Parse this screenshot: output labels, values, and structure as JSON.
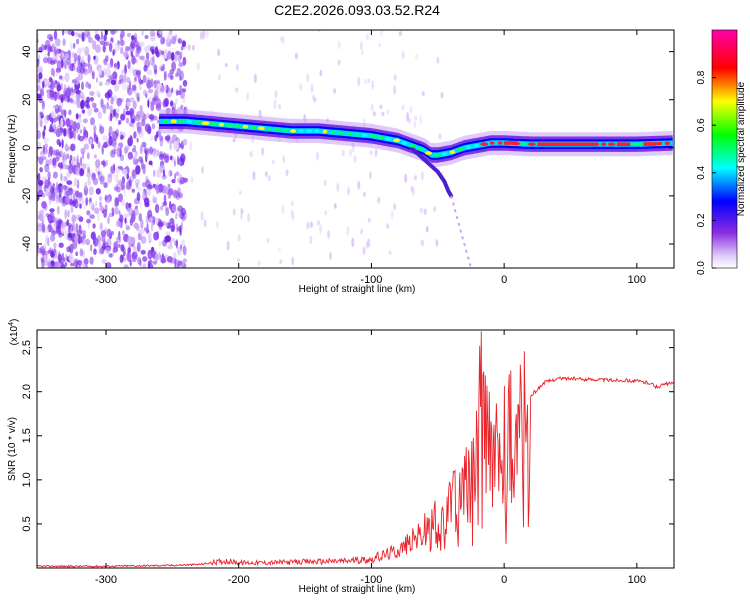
{
  "title": "C2E2.2026.093.03.52.R24",
  "chart_data": [
    {
      "type": "heatmap",
      "title": "C2E2.2026.093.03.52.R24",
      "xlabel": "Height of straight line (km)",
      "ylabel": "Frequency (Hz)",
      "xlim": [
        -352,
        128
      ],
      "ylim": [
        -50,
        49
      ],
      "xticks": [
        -300,
        -200,
        -100,
        0,
        100
      ],
      "xtick_labels": [
        "-300",
        "-200",
        "-100",
        "0",
        "100"
      ],
      "yticks": [
        -40,
        -20,
        0,
        20,
        40
      ],
      "ytick_labels": [
        "-40",
        "-20",
        "0",
        "20",
        "40"
      ],
      "ridge": {
        "description": "frequency of the main signal ridge vs height",
        "x": [
          -260,
          -240,
          -220,
          -200,
          -180,
          -160,
          -140,
          -120,
          -100,
          -90,
          -80,
          -70,
          -60,
          -55,
          -50,
          -40,
          -30,
          -20,
          -10,
          0,
          20,
          40,
          60,
          80,
          100,
          128
        ],
        "y": [
          11,
          11,
          10,
          9,
          8,
          7,
          7,
          6,
          5,
          4,
          3,
          1,
          -1,
          -3,
          -3,
          -2,
          0,
          1,
          2,
          2,
          1.5,
          1.5,
          1.5,
          1.5,
          1.5,
          2
        ]
      },
      "noise_region": {
        "x_from": -352,
        "x_to": -240
      },
      "colorbar": {
        "label": "Normalized spectral amplitude",
        "ticks": [
          0.0,
          0.2,
          0.4,
          0.6,
          0.8
        ],
        "tick_labels": [
          "0.0",
          "0.2",
          "0.4",
          "0.6",
          "0.8"
        ],
        "range": [
          0,
          1
        ],
        "colors": [
          "#ffffff",
          "#e8d8fb",
          "#8a2be2",
          "#0000ff",
          "#00ffff",
          "#00ff00",
          "#ffff00",
          "#ff0000",
          "#ff00aa"
        ]
      }
    },
    {
      "type": "line",
      "xlabel": "Height of straight line (km)",
      "ylabel": "SNR (10 * v/v)",
      "scale_label": "(x10",
      "scale_exp": "4",
      "xlim": [
        -352,
        128
      ],
      "ylim": [
        0,
        2.7
      ],
      "xticks": [
        -300,
        -200,
        -100,
        0,
        100
      ],
      "xtick_labels": [
        "-300",
        "-200",
        "-100",
        "0",
        "100"
      ],
      "yticks": [
        0.5,
        1.0,
        1.5,
        2.0,
        2.5
      ],
      "ytick_labels": [
        "0.5",
        "1.0",
        "1.5",
        "2.0",
        "2.5"
      ],
      "line_color": "#e8232a",
      "series": [
        {
          "name": "SNR",
          "x": [
            -352,
            -300,
            -250,
            -230,
            -210,
            -200,
            -180,
            -150,
            -120,
            -100,
            -90,
            -80,
            -70,
            -60,
            -50,
            -40,
            -30,
            -25,
            -20,
            -17,
            -15,
            -10,
            -5,
            0,
            5,
            10,
            20,
            30,
            40,
            50,
            60,
            70,
            80,
            90,
            100,
            110,
            115,
            120,
            128
          ],
          "y": [
            0.02,
            0.02,
            0.03,
            0.04,
            0.08,
            0.06,
            0.06,
            0.07,
            0.08,
            0.1,
            0.15,
            0.2,
            0.3,
            0.4,
            0.5,
            0.65,
            0.9,
            1.1,
            1.6,
            2.2,
            1.4,
            1.5,
            1.3,
            1.3,
            1.5,
            1.7,
            1.95,
            2.1,
            2.15,
            2.15,
            2.14,
            2.14,
            2.13,
            2.13,
            2.12,
            2.1,
            2.05,
            2.08,
            2.1
          ]
        }
      ]
    }
  ]
}
